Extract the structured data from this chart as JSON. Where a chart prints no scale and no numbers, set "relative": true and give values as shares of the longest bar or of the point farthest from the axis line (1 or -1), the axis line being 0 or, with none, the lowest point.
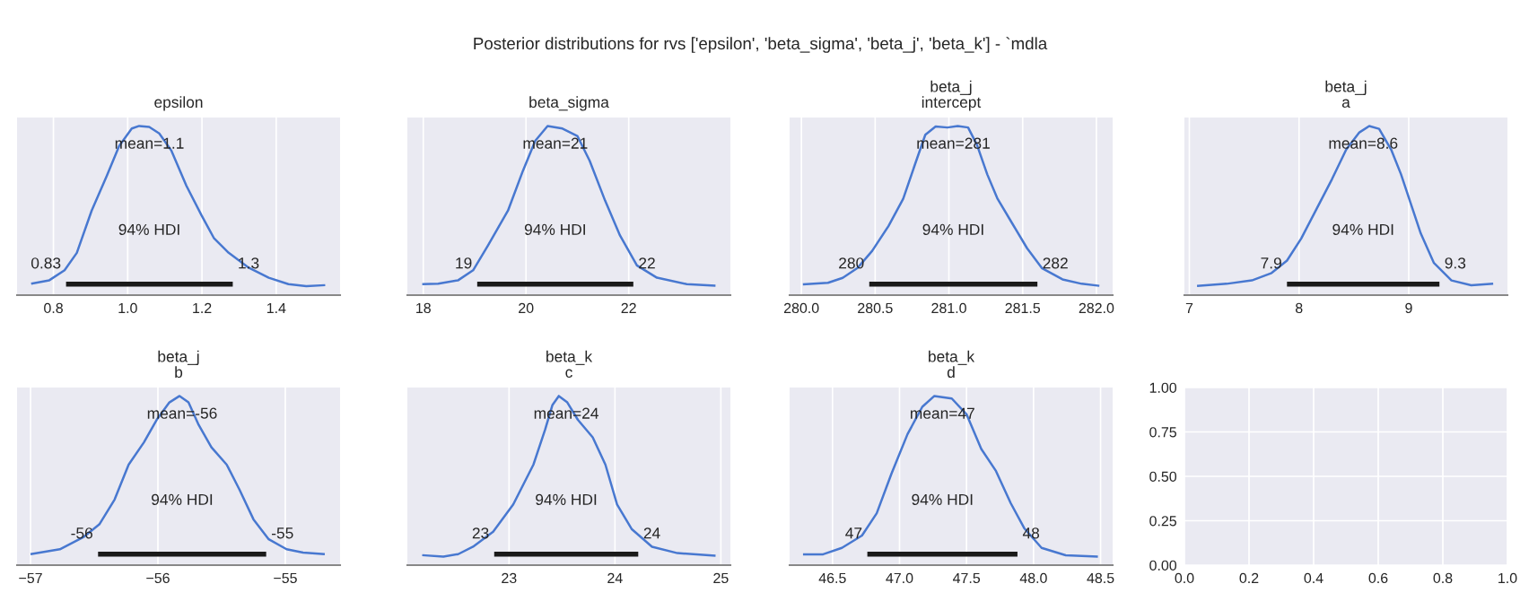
{
  "chart_data": [
    {
      "type": "other",
      "title": "Posterior distributions for rvs ['epsilon', 'beta_sigma', 'beta_j', 'beta_k'] - `mdla"
    },
    {
      "type": "line",
      "title": "epsilon",
      "relative": true,
      "grid": "x",
      "tick_labels": "x",
      "xlim": [
        0.702,
        1.572
      ],
      "xticks": [
        0.8,
        {
          "value": 1.0,
          "label": "1.0"
        },
        1.2,
        1.4
      ],
      "series": [
        {
          "color": "#4878d0",
          "x": [
            0.74,
            0.789,
            0.83,
            0.863,
            0.903,
            0.944,
            0.977,
            1.011,
            1.031,
            1.058,
            1.085,
            1.118,
            1.158,
            1.199,
            1.232,
            1.272,
            1.326,
            1.38,
            1.433,
            1.481,
            1.532
          ],
          "values": [
            0.068,
            0.088,
            0.147,
            0.25,
            0.5,
            0.706,
            0.882,
            0.985,
            1.0,
            0.994,
            0.956,
            0.853,
            0.647,
            0.471,
            0.338,
            0.25,
            0.162,
            0.103,
            0.065,
            0.053,
            0.059
          ]
        },
        {
          "color": "#1a1a1a",
          "x": [
            0.834,
            1.283
          ],
          "values": [
            0.065,
            0.065
          ]
        }
      ],
      "annotations": [
        "mean=1.1",
        "94% HDI",
        {
          "text": "0.83",
          "x": 0.834,
          "y": 0.065
        },
        {
          "text": "1.3",
          "x": 1.283,
          "y": 0.065
        }
      ]
    },
    {
      "type": "line",
      "title": "beta_sigma",
      "relative": true,
      "grid": "x",
      "tick_labels": "x",
      "xlim": [
        17.69,
        23.98
      ],
      "xticks": [
        18,
        20,
        22
      ],
      "series": [
        {
          "color": "#4878d0",
          "x": [
            17.98,
            18.29,
            18.68,
            18.97,
            19.26,
            19.65,
            19.94,
            20.18,
            20.42,
            20.71,
            21.0,
            21.24,
            21.54,
            21.83,
            22.16,
            22.55,
            23.13,
            23.69
          ],
          "values": [
            0.065,
            0.068,
            0.088,
            0.147,
            0.294,
            0.5,
            0.735,
            0.912,
            1.0,
            0.985,
            0.941,
            0.794,
            0.559,
            0.353,
            0.176,
            0.103,
            0.065,
            0.056
          ]
        },
        {
          "color": "#1a1a1a",
          "x": [
            19.05,
            22.09
          ],
          "values": [
            0.065,
            0.065
          ]
        }
      ],
      "annotations": [
        "mean=21",
        "94% HDI",
        {
          "text": "19",
          "x": 19.05,
          "y": 0.065
        },
        {
          "text": "22",
          "x": 22.09,
          "y": 0.065
        }
      ]
    },
    {
      "type": "line",
      "title": "beta_j\nintercept",
      "relative": true,
      "grid": "x",
      "tick_labels": "x",
      "xlim": [
        279.92,
        282.11
      ],
      "xticks": [
        {
          "value": 280,
          "label": "280.0"
        },
        280.5,
        {
          "value": 281,
          "label": "281.0"
        },
        281.5,
        {
          "value": 282,
          "label": "282.0"
        }
      ],
      "series": [
        {
          "color": "#4878d0",
          "x": [
            280.01,
            280.18,
            280.28,
            280.38,
            280.48,
            280.59,
            280.69,
            280.77,
            280.84,
            280.91,
            280.99,
            281.06,
            281.13,
            281.19,
            281.26,
            281.33,
            281.43,
            281.53,
            281.63,
            281.77,
            281.9,
            282.02
          ],
          "values": [
            0.064,
            0.073,
            0.102,
            0.16,
            0.262,
            0.408,
            0.569,
            0.773,
            0.948,
            0.997,
            0.991,
            1.0,
            0.991,
            0.889,
            0.714,
            0.569,
            0.423,
            0.277,
            0.16,
            0.093,
            0.067,
            0.055
          ]
        },
        {
          "color": "#1a1a1a",
          "x": [
            280.46,
            281.6
          ],
          "values": [
            0.065,
            0.065
          ]
        }
      ],
      "annotations": [
        "mean=281",
        "94% HDI",
        {
          "text": "280",
          "x": 280.46,
          "y": 0.065
        },
        {
          "text": "282",
          "x": 281.6,
          "y": 0.065
        }
      ]
    },
    {
      "type": "line",
      "title": "beta_j\na",
      "relative": true,
      "grid": "x",
      "tick_labels": "x",
      "xlim": [
        6.955,
        9.9
      ],
      "xticks": [
        7,
        8,
        9
      ],
      "series": [
        {
          "color": "#4878d0",
          "x": [
            7.07,
            7.34,
            7.57,
            7.75,
            7.89,
            8.02,
            8.16,
            8.3,
            8.43,
            8.55,
            8.64,
            8.73,
            8.84,
            8.93,
            9.02,
            9.11,
            9.23,
            9.39,
            9.57,
            9.77
          ],
          "values": [
            0.055,
            0.067,
            0.087,
            0.131,
            0.204,
            0.335,
            0.51,
            0.685,
            0.86,
            0.962,
            1.0,
            0.983,
            0.86,
            0.714,
            0.539,
            0.364,
            0.19,
            0.087,
            0.058,
            0.067
          ]
        },
        {
          "color": "#1a1a1a",
          "x": [
            7.89,
            9.28
          ],
          "values": [
            0.065,
            0.065
          ]
        }
      ],
      "annotations": [
        "mean=8.6",
        "94% HDI",
        {
          "text": "7.9",
          "x": 7.89,
          "y": 0.065
        },
        {
          "text": "9.3",
          "x": 9.28,
          "y": 0.065
        }
      ]
    },
    {
      "type": "line",
      "title": "beta_j\nb",
      "relative": true,
      "grid": "x",
      "tick_labels": "x",
      "xlim": [
        -57.106,
        -54.57
      ],
      "xticks": [
        {
          "value": -57,
          "label": "−57"
        },
        {
          "value": -56,
          "label": "−56"
        },
        {
          "value": -55,
          "label": "−55"
        }
      ],
      "series": [
        {
          "color": "#4878d0",
          "x": [
            -57.0,
            -56.77,
            -56.58,
            -56.46,
            -56.34,
            -56.23,
            -56.11,
            -56.01,
            -55.91,
            -55.83,
            -55.76,
            -55.68,
            -55.58,
            -55.46,
            -55.36,
            -55.25,
            -55.13,
            -54.99,
            -54.86,
            -54.69
          ],
          "values": [
            0.065,
            0.094,
            0.168,
            0.241,
            0.388,
            0.594,
            0.726,
            0.859,
            0.962,
            1.0,
            0.962,
            0.829,
            0.697,
            0.594,
            0.447,
            0.271,
            0.153,
            0.094,
            0.074,
            0.065
          ]
        },
        {
          "color": "#1a1a1a",
          "x": [
            -56.47,
            -55.15
          ],
          "values": [
            0.065,
            0.065
          ]
        }
      ],
      "annotations": [
        "mean=-56",
        "94% HDI",
        {
          "text": "-56",
          "x": -56.47,
          "y": 0.065
        },
        {
          "text": "-55",
          "x": -55.15,
          "y": 0.065
        }
      ]
    },
    {
      "type": "line",
      "title": "beta_k\nc",
      "relative": true,
      "grid": "x",
      "tick_labels": "x",
      "xlim": [
        22.04,
        25.09
      ],
      "xticks": [
        23,
        24,
        25
      ],
      "series": [
        {
          "color": "#4878d0",
          "x": [
            22.18,
            22.38,
            22.52,
            22.66,
            22.85,
            23.04,
            23.23,
            23.34,
            23.41,
            23.47,
            23.55,
            23.65,
            23.79,
            23.91,
            24.02,
            24.16,
            24.35,
            24.59,
            24.95
          ],
          "values": [
            0.059,
            0.05,
            0.065,
            0.109,
            0.197,
            0.359,
            0.594,
            0.8,
            0.947,
            1.0,
            0.962,
            0.859,
            0.756,
            0.594,
            0.359,
            0.212,
            0.109,
            0.071,
            0.056
          ]
        },
        {
          "color": "#1a1a1a",
          "x": [
            22.86,
            24.22
          ],
          "values": [
            0.065,
            0.065
          ]
        }
      ],
      "annotations": [
        "mean=24",
        "94% HDI",
        {
          "text": "23",
          "x": 22.86,
          "y": 0.065
        },
        {
          "text": "24",
          "x": 24.22,
          "y": 0.065
        }
      ]
    },
    {
      "type": "line",
      "title": "beta_k\nd",
      "relative": true,
      "grid": "x",
      "tick_labels": "x",
      "xlim": [
        46.18,
        48.59
      ],
      "xticks": [
        46.5,
        {
          "value": 47,
          "label": "47.0"
        },
        47.5,
        {
          "value": 48,
          "label": "48.0"
        },
        48.5
      ],
      "series": [
        {
          "color": "#4878d0",
          "x": [
            46.28,
            46.43,
            46.57,
            46.72,
            46.83,
            46.94,
            47.06,
            47.17,
            47.26,
            47.39,
            47.5,
            47.61,
            47.72,
            47.83,
            47.93,
            48.06,
            48.24,
            48.48
          ],
          "values": [
            0.064,
            0.064,
            0.102,
            0.175,
            0.307,
            0.541,
            0.775,
            0.936,
            1.0,
            0.985,
            0.892,
            0.687,
            0.556,
            0.366,
            0.219,
            0.102,
            0.058,
            0.05
          ]
        },
        {
          "color": "#1a1a1a",
          "x": [
            46.76,
            47.88
          ],
          "values": [
            0.065,
            0.065
          ]
        }
      ],
      "annotations": [
        "mean=47",
        "94% HDI",
        {
          "text": "47",
          "x": 46.76,
          "y": 0.065
        },
        {
          "text": "48",
          "x": 47.88,
          "y": 0.065
        }
      ]
    },
    {
      "type": "scatter",
      "grid": true,
      "xlim": [
        0,
        1
      ],
      "ylim": [
        0,
        1
      ],
      "xticks": [
        {
          "value": 0,
          "label": "0.0"
        },
        0.2,
        0.4,
        0.6,
        0.8,
        {
          "value": 1,
          "label": "1.0"
        }
      ],
      "yticks": [
        {
          "value": 0,
          "label": "0.00"
        },
        0.25,
        {
          "value": 0.5,
          "label": "0.50"
        },
        0.75,
        {
          "value": 1,
          "label": "1.00"
        }
      ]
    }
  ]
}
